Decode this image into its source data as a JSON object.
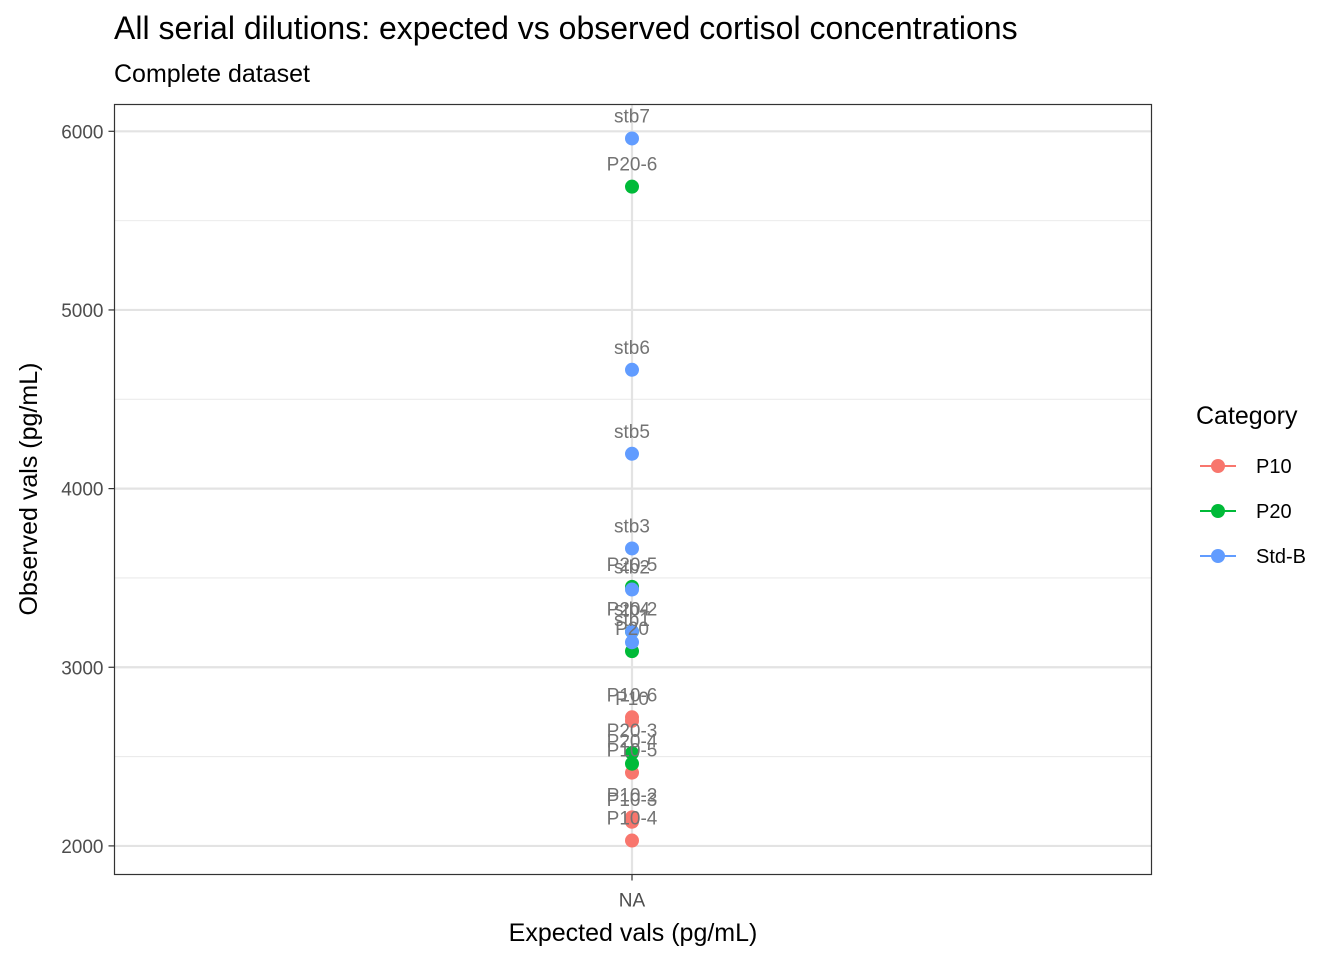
{
  "chart_data": {
    "type": "scatter",
    "title": "All serial dilutions: expected vs observed cortisol concentrations",
    "subtitle": "Complete dataset",
    "xlabel": "Expected vals (pg/mL)",
    "ylabel": "Observed vals (pg/mL)",
    "x_ticks": [
      "NA"
    ],
    "y_ticks": [
      2000,
      3000,
      4000,
      5000,
      6000
    ],
    "ylim": [
      1840,
      6150
    ],
    "grid": true,
    "legend": {
      "title": "Category",
      "position": "right",
      "entries": [
        "P10",
        "P20",
        "Std-B"
      ]
    },
    "colors": {
      "P10": "#F8766D",
      "P20": "#00BA38",
      "Std-B": "#619CFF"
    },
    "series": [
      {
        "name": "P10",
        "points": [
          {
            "label": "P10-6",
            "y": 2720
          },
          {
            "label": "P10",
            "y": 2700
          },
          {
            "label": "P10-5",
            "y": 2410
          },
          {
            "label": "P10-2",
            "y": 2160
          },
          {
            "label": "P10-3",
            "y": 2135
          },
          {
            "label": "P10-4",
            "y": 2030
          }
        ]
      },
      {
        "name": "P20",
        "points": [
          {
            "label": "P20-6",
            "y": 5690
          },
          {
            "label": "P20-5",
            "y": 3450
          },
          {
            "label": "P20-2",
            "y": 3200
          },
          {
            "label": "P20",
            "y": 3090
          },
          {
            "label": "P20-3",
            "y": 2520
          },
          {
            "label": "P20-4",
            "y": 2460
          }
        ]
      },
      {
        "name": "Std-B",
        "points": [
          {
            "label": "stb7",
            "y": 5960
          },
          {
            "label": "stb6",
            "y": 4665
          },
          {
            "label": "stb5",
            "y": 4195
          },
          {
            "label": "stb3",
            "y": 3665
          },
          {
            "label": "stb2",
            "y": 3435
          },
          {
            "label": "stb4",
            "y": 3200
          },
          {
            "label": "stb1",
            "y": 3140
          }
        ]
      }
    ]
  }
}
